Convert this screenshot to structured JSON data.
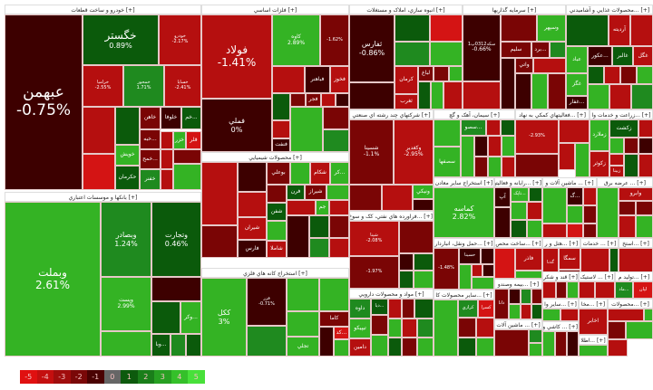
{
  "sectors": [
    {
      "title": "[+] خودرو و ساخت قطعات",
      "tiles": [
        {
          "s": "عبهمن",
          "c": "-0.75%"
        },
        {
          "s": "خگستر",
          "c": "0.89%"
        },
        {
          "s": "خودرو",
          "c": "-2.17%"
        },
        {
          "s": "خرامیا",
          "c": "-2.55%"
        },
        {
          "s": "خمحور",
          "c": "1.71%"
        },
        {
          "s": "خساپا",
          "c": "-2.41%"
        },
        {
          "s": "خاهن"
        },
        {
          "s": "خلوفا"
        },
        {
          "s": "...خم"
        },
        {
          "s": "...خبه"
        },
        {
          "s": "خويش"
        },
        {
          "s": "...خمح"
        },
        {
          "s": "حکرمان"
        },
        {
          "s": "خفنر"
        },
        {
          "s": "خزر"
        },
        {
          "s": "قلر"
        }
      ]
    },
    {
      "title": "[+] فلزات اساسي",
      "tiles": [
        {
          "s": "فولاد",
          "c": "-1.41%"
        },
        {
          "s": "فملي",
          "c": "0%"
        },
        {
          "s": "کاوه",
          "c": "2.89%"
        },
        {
          "s": "",
          "c": "-1.62%"
        },
        {
          "s": "فباهنر"
        },
        {
          "s": "فخوز"
        },
        {
          "s": "فجر"
        },
        {
          "s": "فنفت"
        }
      ]
    },
    {
      "title": "[+] محصولات شيميايي",
      "tiles": [
        {
          "s": "بوعلي"
        },
        {
          "s": "شکام"
        },
        {
          "s": "...کر"
        },
        {
          "s": "شيراز"
        },
        {
          "s": "فرن"
        },
        {
          "s": "شفن"
        },
        {
          "s": "شيران"
        },
        {
          "s": "فارس"
        },
        {
          "s": "شاملا"
        },
        {
          "s": "جم"
        }
      ]
    },
    {
      "title": "[+] بانکها و موسسات اعتباري",
      "tiles": [
        {
          "s": "وبملت",
          "c": "2.61%"
        },
        {
          "s": "وبصادر",
          "c": "1.24%"
        },
        {
          "s": "وتجارت",
          "c": "0.46%"
        },
        {
          "s": "وپست",
          "c": "2.99%"
        },
        {
          "s": "...وکر"
        },
        {
          "s": "...وبا"
        }
      ]
    },
    {
      "title": "[+] استخراج کانه هاي فلزي",
      "tiles": [
        {
          "s": "ککل",
          "c": "3%"
        },
        {
          "s": "فزر",
          "c": "-0.71%"
        },
        {
          "s": "کاما"
        },
        {
          "s": "...کد"
        },
        {
          "s": "تجلي"
        }
      ]
    },
    {
      "title": "[+] انبوه سازي، املاک و مستغلات",
      "tiles": [
        {
          "s": "ثفارس",
          "c": "-0.86%"
        },
        {
          "s": "کرمان"
        },
        {
          "s": "لباغ"
        },
        {
          "s": "ثغرب"
        }
      ]
    },
    {
      "title": "[+] سرمايه گذاريها",
      "tiles": [
        {
          "s": "سکه0312پ1",
          "c": "-0.66%"
        },
        {
          "s": "وسپهر"
        },
        {
          "s": "سليم"
        },
        {
          "s": "...برد"
        },
        {
          "s": "واتي"
        }
      ]
    },
    {
      "title": "[+] ...محصولات غذايي و آشاميدني",
      "tiles": [
        {
          "s": "آرديته"
        },
        {
          "s": "عباد"
        },
        {
          "s": "...عکور"
        },
        {
          "s": "غالبر"
        },
        {
          "s": "غگل"
        },
        {
          "s": "غگز"
        },
        {
          "s": "...غفار"
        }
      ]
    },
    {
      "title": "[+] شرکتهاي چند رشته اي صنعتي",
      "tiles": [
        {
          "s": "شسينا",
          "c": "-1.1%"
        },
        {
          "s": "وکغدير",
          "c": "-2.95%"
        },
        {
          "s": "ونيکي"
        }
      ]
    },
    {
      "title": "[+] سيمان، آهک و گچ",
      "tiles": [
        {
          "s": "...سصو"
        },
        {
          "s": "سصفها"
        }
      ]
    },
    {
      "title": "[+] ...فعاليتهاي کمکي به نهاد",
      "tiles": [
        {
          "s": "",
          "c": "-2.93%"
        }
      ]
    },
    {
      "title": "[+] ...زراعت و خدمات وا",
      "tiles": [
        {
          "s": "زکشت"
        },
        {
          "s": "زملارد"
        },
        {
          "s": "زکوثر"
        },
        {
          "s": "زبينا"
        }
      ]
    },
    {
      "title": "[+] ...فراورده هاي نفتي، کک و سوخ",
      "tiles": [
        {
          "s": "شپنا",
          "c": "-2.08%"
        },
        {
          "s": "",
          "c": "-1.97%"
        }
      ]
    },
    {
      "title": "[+] مواد و محصولات دارويي",
      "tiles": [
        {
          "s": "داوه"
        },
        {
          "s": "تيپيکو"
        },
        {
          "s": "دامين"
        },
        {
          "s": "...ديا"
        }
      ]
    },
    {
      "title": "[+] استخراج ساير معادن",
      "tiles": [
        {
          "s": "کماسه",
          "c": "2.82%"
        }
      ]
    },
    {
      "title": "[+] ...رايانه و فعاليتها",
      "tiles": [
        {
          "s": "آپ"
        },
        {
          "s": "...تاپک"
        }
      ]
    },
    {
      "title": "[+] ... ماشين آلات و",
      "tiles": [
        {
          "s": "...گ"
        }
      ]
    },
    {
      "title": "[+] ... عرضه برق",
      "tiles": [
        {
          "s": "وابرو"
        }
      ]
    },
    {
      "title": "[+] ...حمل ونقل، انباردار",
      "tiles": [
        {
          "s": "",
          "c": "-1.48%"
        },
        {
          "s": "حسينا"
        }
      ]
    },
    {
      "title": "[+] ...ساخت محص",
      "tiles": [
        {
          "s": "فاذر"
        }
      ]
    },
    {
      "title": "[+] ...هتل و ر",
      "tiles": [
        {
          "s": "سمگا"
        },
        {
          "s": "گدنا"
        }
      ]
    },
    {
      "title": "[+] ... خدمات",
      "tiles": []
    },
    {
      "title": "[+] ...استخ",
      "tiles": []
    },
    {
      "title": "[+] ...بيمه وصندو",
      "tiles": [
        {
          "s": "دانا"
        }
      ]
    },
    {
      "title": "[+] قند و شکر",
      "tiles": []
    },
    {
      "title": "[+] ... لاستيک",
      "tiles": []
    },
    {
      "title": "[+] ...توليد م",
      "tiles": [
        {
          "s": "...ماد"
        },
        {
          "s": "لپان"
        }
      ]
    },
    {
      "title": "[+] ...ساير محصولات کا",
      "tiles": [
        {
          "s": "کرازي"
        },
        {
          "s": "کسرا"
        }
      ]
    },
    {
      "title": "[+] ...ساير وا",
      "tiles": []
    },
    {
      "title": "[+] ...مخا",
      "tiles": [
        {
          "s": "اخابر"
        }
      ]
    },
    {
      "title": "[+] ...محصولات",
      "tiles": []
    },
    {
      "title": "[+] ... ماشين آلات",
      "tiles": []
    },
    {
      "title": "[+] ... کاشي و",
      "tiles": []
    },
    {
      "title": "[+] ...اطلا",
      "tiles": []
    }
  ],
  "legend": [
    {
      "v": "-5",
      "color": "#e01010"
    },
    {
      "v": "-4",
      "color": "#c40f0f"
    },
    {
      "v": "-3",
      "color": "#a00d0d"
    },
    {
      "v": "-2",
      "color": "#7a0808"
    },
    {
      "v": "-1",
      "color": "#4a0202"
    },
    {
      "v": "0",
      "color": "#666666"
    },
    {
      "v": "1",
      "color": "#0d5a0d"
    },
    {
      "v": "2",
      "color": "#1a7e1a"
    },
    {
      "v": "3",
      "color": "#27a022"
    },
    {
      "v": "4",
      "color": "#35c02a"
    },
    {
      "v": "5",
      "color": "#48e03a"
    }
  ]
}
